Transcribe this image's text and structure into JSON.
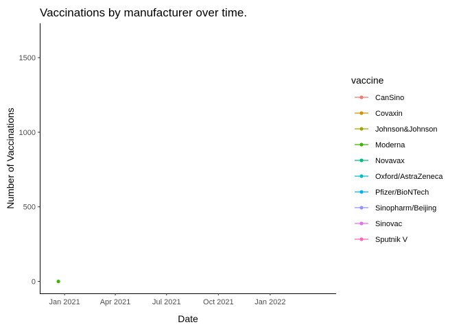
{
  "chart_data": {
    "type": "line",
    "title": "Vaccinations by manufacturer over time.",
    "xlabel": "Date",
    "ylabel": "Number of Vaccinations",
    "x_ticks": [
      "Jan 2021",
      "Apr 2021",
      "Jul 2021",
      "Oct 2021",
      "Jan 2022"
    ],
    "y_ticks": [
      "0",
      "500",
      "1000",
      "1500"
    ],
    "ylim": [
      -80,
      1730
    ],
    "xlim": [
      "2020-11-18",
      "2022-04-28"
    ],
    "grid": false,
    "legend_position": "right",
    "legend_title": "vaccine",
    "series": [
      {
        "name": "CanSino",
        "color": "#F8766D",
        "points": []
      },
      {
        "name": "Covaxin",
        "color": "#D89000",
        "points": []
      },
      {
        "name": "Johnson&Johnson",
        "color": "#A3A500",
        "points": []
      },
      {
        "name": "Moderna",
        "color": "#39B600",
        "points": [
          {
            "x": "2020-12-21",
            "y": 0
          }
        ]
      },
      {
        "name": "Novavax",
        "color": "#00BF7D",
        "points": []
      },
      {
        "name": "Oxford/AstraZeneca",
        "color": "#00BFC4",
        "points": []
      },
      {
        "name": "Pfizer/BioNTech",
        "color": "#00B0F6",
        "points": []
      },
      {
        "name": "Sinopharm/Beijing",
        "color": "#9590FF",
        "points": []
      },
      {
        "name": "Sinovac",
        "color": "#E76BF3",
        "points": []
      },
      {
        "name": "Sputnik V",
        "color": "#FF62BC",
        "points": []
      }
    ]
  }
}
